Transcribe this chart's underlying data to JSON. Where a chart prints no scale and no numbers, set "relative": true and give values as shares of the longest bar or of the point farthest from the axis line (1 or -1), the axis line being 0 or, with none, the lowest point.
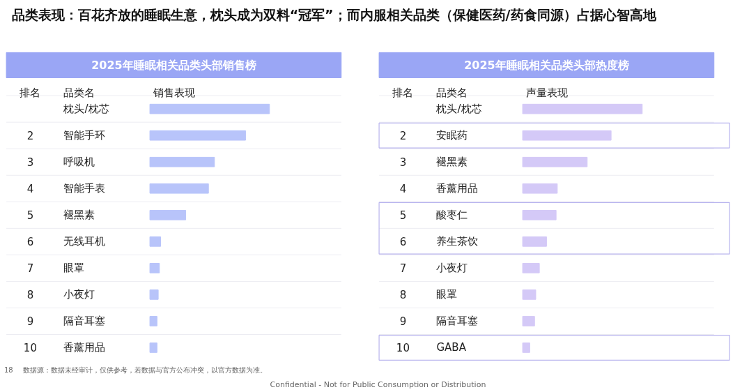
{
  "chart_data": [
    {
      "type": "bar",
      "orientation": "horizontal",
      "relative": true,
      "tick_labels": "y",
      "title": "2025年睡眠相关品类头部销售榜",
      "ylabel": "品类名",
      "xlabel": "销售表现",
      "color": "#b8c4fa",
      "categories": [
        "枕头/枕芯",
        "智能手环",
        "呼吸机",
        "智能手表",
        "褪黑素",
        "无线耳机",
        "眼罩",
        "小夜灯",
        "隔音耳塞",
        "香薰用品"
      ],
      "values": [
        1,
        0.8,
        0.54,
        0.49,
        0.3,
        0.09,
        0.08,
        0.07,
        0.06,
        0.06
      ],
      "annotations": [
        "品类表现：百花齐放的睡眠生意，枕头成为双料“冠军”；而内服相关品类（保健医药/药食同源）占据心智高地",
        "18",
        "数据源：数据未经审计，仅供参考，若数据与官方公布冲突，以官方数据为准。",
        "Confidential - Not for Public Consumption or Distribution",
        "排名",
        "2",
        "3",
        "4",
        "5",
        "6",
        "7",
        "8",
        "9",
        "10"
      ]
    },
    {
      "type": "bar",
      "orientation": "horizontal",
      "relative": true,
      "tick_labels": "y",
      "title": "2025年睡眠相关品类头部热度榜",
      "ylabel": "品类名",
      "xlabel": "声量表现",
      "color": "#d4c9f7",
      "categories": [
        "枕头/枕芯",
        "安眠药",
        "褪黑素",
        "香薰用品",
        "酸枣仁",
        "养生茶饮",
        "小夜灯",
        "眼罩",
        "隔音耳塞",
        "GABA"
      ],
      "values": [
        1,
        0.74,
        0.54,
        0.29,
        0.28,
        0.2,
        0.14,
        0.11,
        0.1,
        0.06
      ],
      "annotations": [
        "排名",
        "2",
        "3",
        "4",
        "5",
        "6",
        "7",
        "8",
        "9",
        "10"
      ]
    }
  ]
}
